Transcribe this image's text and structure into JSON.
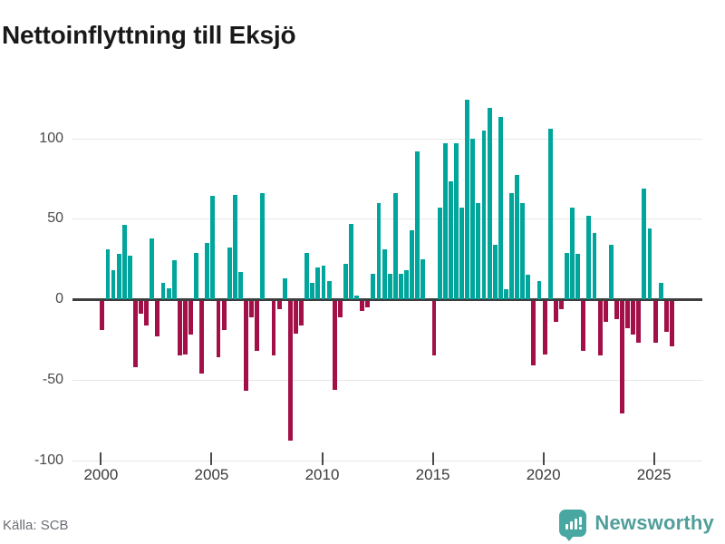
{
  "title": "Nettoinflyttning till Eksjö",
  "footer": {
    "source": "Källa: SCB"
  },
  "branding": {
    "wordmark": "Newsworthy",
    "icon": "newsworthy-bars-icon"
  },
  "colors": {
    "positive": "#00a59c",
    "negative": "#a31048",
    "grid": "#e7e7e7",
    "zero_line": "#3d3d3d",
    "axis_text": "#3a3a3a",
    "title_text": "#191919",
    "source_text": "#6b6e76",
    "brand_teal": "#48a7a1"
  },
  "chart_data": {
    "type": "bar",
    "title": "Nettoinflyttning till Eksjö",
    "frequency": "quarterly",
    "x_start": 2000,
    "x_step": 0.25,
    "series": [
      {
        "name": "Nettoinflyttning",
        "values": [
          -18,
          31,
          18,
          28,
          46,
          27,
          -41,
          -8,
          -15,
          38,
          -22,
          10,
          7,
          24,
          -34,
          -33,
          -21,
          29,
          -45,
          35,
          64,
          -35,
          -18,
          32,
          65,
          17,
          -56,
          -10,
          -31,
          66,
          0,
          -34,
          -5,
          13,
          -87,
          -20,
          -15,
          29,
          10,
          20,
          21,
          11,
          -55,
          -10,
          22,
          47,
          2,
          -6,
          -4,
          16,
          60,
          31,
          16,
          66,
          16,
          18,
          43,
          92,
          25,
          0,
          -34,
          57,
          97,
          73,
          97,
          57,
          124,
          100,
          60,
          105,
          119,
          34,
          113,
          6,
          66,
          77,
          60,
          15,
          -40,
          11,
          -33,
          106,
          -13,
          -5,
          29,
          57,
          28,
          -31,
          52,
          41,
          -34,
          -13,
          34,
          -11,
          -70,
          -17,
          -21,
          -26,
          69,
          44,
          -26,
          10,
          -19,
          -28
        ]
      }
    ],
    "xticks": [
      2000,
      2005,
      2010,
      2015,
      2020,
      2025
    ],
    "yticks": [
      100,
      50,
      0,
      -50,
      -100
    ],
    "ylim": [
      -100,
      130
    ],
    "grid": true,
    "legend": false
  }
}
